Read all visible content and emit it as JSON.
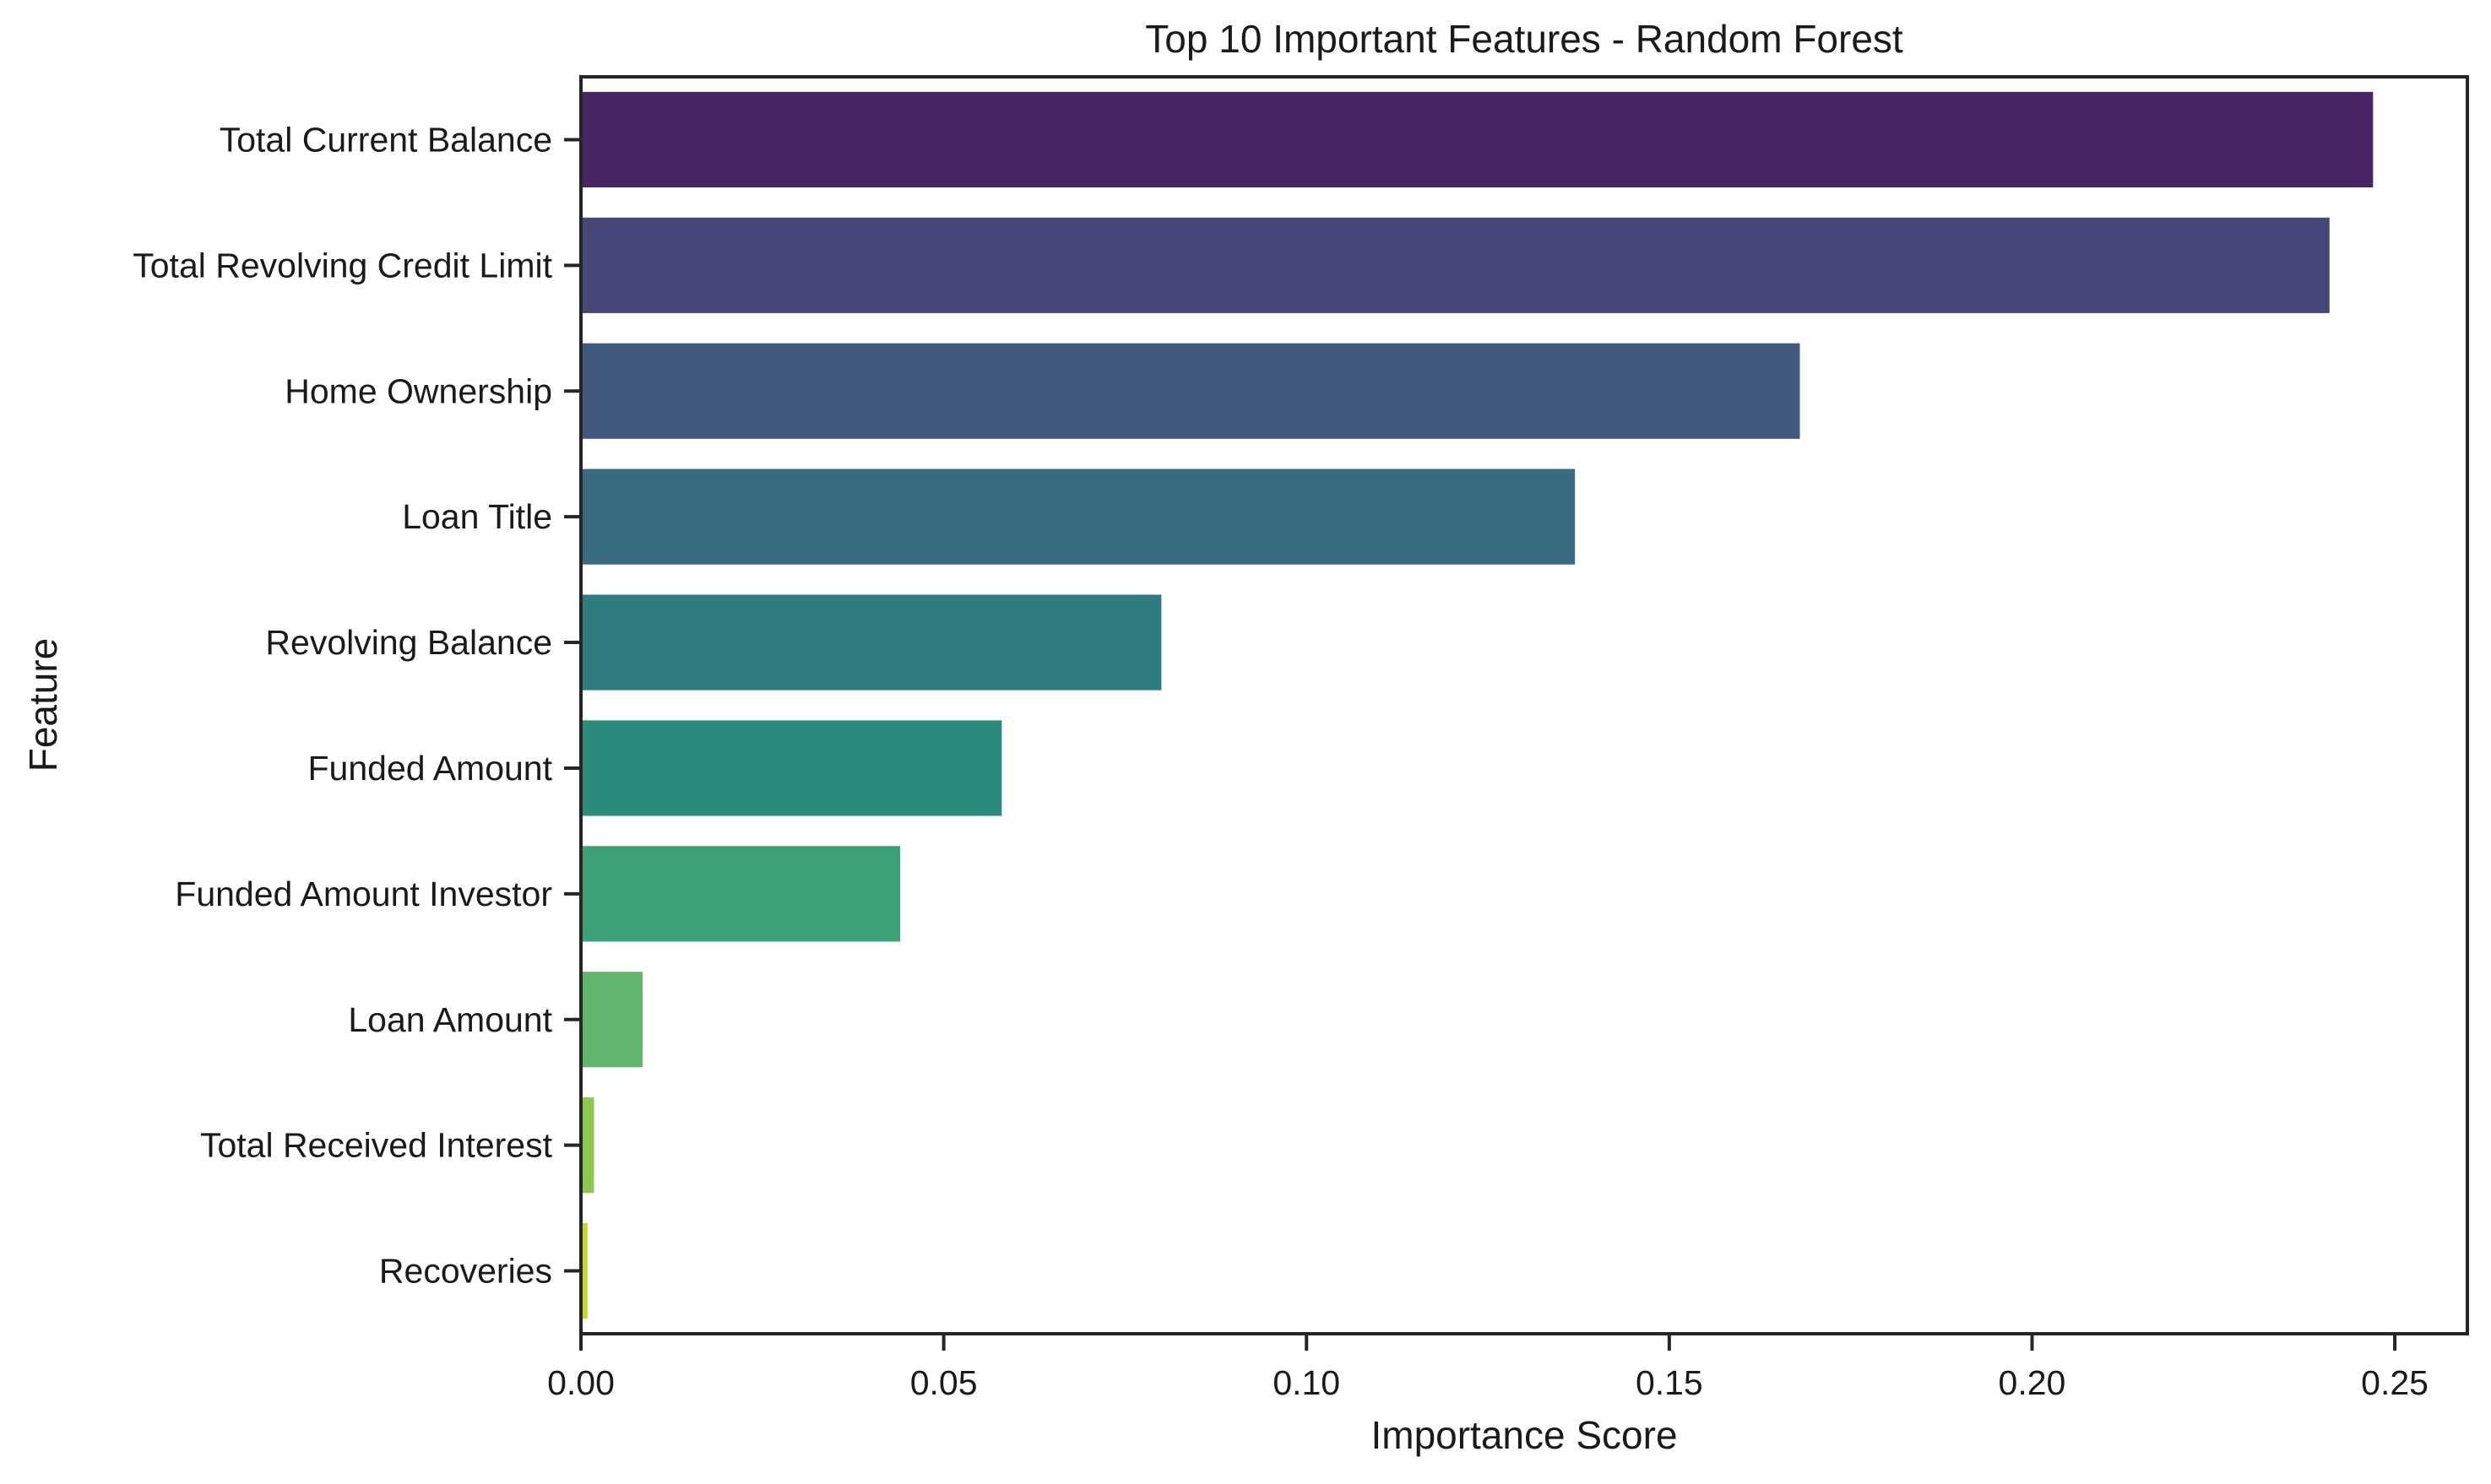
{
  "chart_data": {
    "type": "bar",
    "orientation": "horizontal",
    "title": "Top 10 Important Features - Random Forest",
    "xlabel": "Importance Score",
    "ylabel": "Feature",
    "xlim": [
      0,
      0.26
    ],
    "xticks": [
      0.0,
      0.05,
      0.1,
      0.15,
      0.2,
      0.25
    ],
    "xtick_labels": [
      "0.00",
      "0.05",
      "0.10",
      "0.15",
      "0.20",
      "0.25"
    ],
    "categories": [
      "Total Current Balance",
      "Total Revolving Credit Limit",
      "Home Ownership",
      "Loan Title",
      "Revolving Balance",
      "Funded Amount",
      "Funded Amount Investor",
      "Loan Amount",
      "Total Received Interest",
      "Recoveries"
    ],
    "values": [
      0.247,
      0.241,
      0.168,
      0.137,
      0.08,
      0.058,
      0.044,
      0.0085,
      0.0018,
      0.0009
    ],
    "colors": [
      "#482565",
      "#47477a",
      "#425a80",
      "#396b80",
      "#2e7b80",
      "#2c8b7b",
      "#3da077",
      "#62b56e",
      "#8ec84e",
      "#c5d628"
    ],
    "grid": false,
    "legend": "none"
  }
}
